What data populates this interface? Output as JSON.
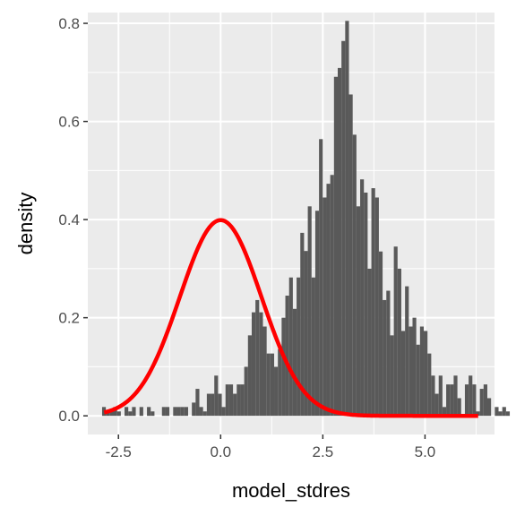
{
  "chart_data": {
    "type": "histogram",
    "xlabel": "model_stdres",
    "ylabel": "density",
    "xlim": [
      -3.25,
      6.7
    ],
    "ylim": [
      -0.038,
      0.822
    ],
    "x_ticks": [
      -2.5,
      0.0,
      2.5,
      5.0
    ],
    "x_tick_labels": [
      "-2.5",
      "0.0",
      "2.5",
      "5.0"
    ],
    "y_ticks": [
      0.0,
      0.2,
      0.4,
      0.6,
      0.8
    ],
    "y_tick_labels": [
      "0.0",
      "0.2",
      "0.4",
      "0.6",
      "0.8"
    ],
    "grid": true,
    "panel_background": "#ebebeb",
    "grid_color": "#ffffff",
    "bar_color": "#595959",
    "bins": {
      "start": -2.9,
      "width": 0.0915,
      "densities": [
        0.018,
        0.009,
        0.009,
        0.018,
        0.009,
        0.0,
        0.018,
        0.009,
        0.018,
        0.0,
        0.018,
        0.0,
        0.018,
        0.009,
        0.0,
        0.0,
        0.018,
        0.018,
        0.0,
        0.018,
        0.018,
        0.018,
        0.018,
        0.0,
        0.027,
        0.055,
        0.018,
        0.009,
        0.045,
        0.045,
        0.082,
        0.045,
        0.018,
        0.064,
        0.064,
        0.045,
        0.064,
        0.064,
        0.1,
        0.164,
        0.211,
        0.236,
        0.211,
        0.182,
        0.127,
        0.127,
        0.1,
        0.136,
        0.2,
        0.245,
        0.282,
        0.218,
        0.282,
        0.373,
        0.336,
        0.427,
        0.282,
        0.418,
        0.564,
        0.445,
        0.473,
        0.491,
        0.691,
        0.709,
        0.764,
        0.805,
        0.655,
        0.573,
        0.427,
        0.482,
        0.455,
        0.3,
        0.464,
        0.445,
        0.335,
        0.236,
        0.255,
        0.164,
        0.345,
        0.3,
        0.173,
        0.264,
        0.182,
        0.2,
        0.145,
        0.182,
        0.173,
        0.127,
        0.082,
        0.045,
        0.082,
        0.018,
        0.064,
        0.064,
        0.082,
        0.036,
        0.0,
        0.064,
        0.082,
        0.064,
        0.009,
        0.055,
        0.064,
        0.036,
        0.0,
        0.018,
        0.009,
        0.018,
        0.009,
        0.0,
        0.0,
        0.018,
        0.009,
        0.0,
        0.0,
        0.018,
        0.0,
        0.0,
        0.009,
        0.018,
        0.009,
        0.018,
        0.018,
        0.0,
        0.009,
        0.018,
        0.0,
        0.009,
        0.018,
        0.0,
        0.009,
        0.009,
        0.018,
        0.0,
        0.0,
        0.009,
        0.0,
        0.018,
        0.0,
        0.0,
        0.009,
        0.0,
        0.009,
        0.018,
        0.0,
        0.0,
        0.009,
        0.0,
        0.0,
        0.0,
        0.0,
        0.018,
        0.0,
        0.0,
        0.0,
        0.0,
        0.0,
        0.0,
        0.009,
        0.0,
        0.0,
        0.0,
        0.0,
        0.0,
        0.0,
        0.0,
        0.0,
        0.0,
        0.0,
        0.0,
        0.0,
        0.0,
        0.0,
        0.0,
        0.0,
        0.0,
        0.0,
        0.0,
        0.0,
        0.0,
        0.0,
        0.0,
        0.0,
        0.0,
        0.0,
        0.0,
        0.0,
        0.0,
        0.0,
        0.0,
        0.0,
        0.0,
        0.0,
        0.0,
        0.0,
        0.0,
        0.0,
        0.0,
        0.0,
        0.018
      ]
    },
    "curve": {
      "type": "normal_density",
      "mean": 0,
      "sd": 1,
      "x_range": [
        -2.85,
        6.3
      ],
      "color": "#ff0000"
    }
  }
}
